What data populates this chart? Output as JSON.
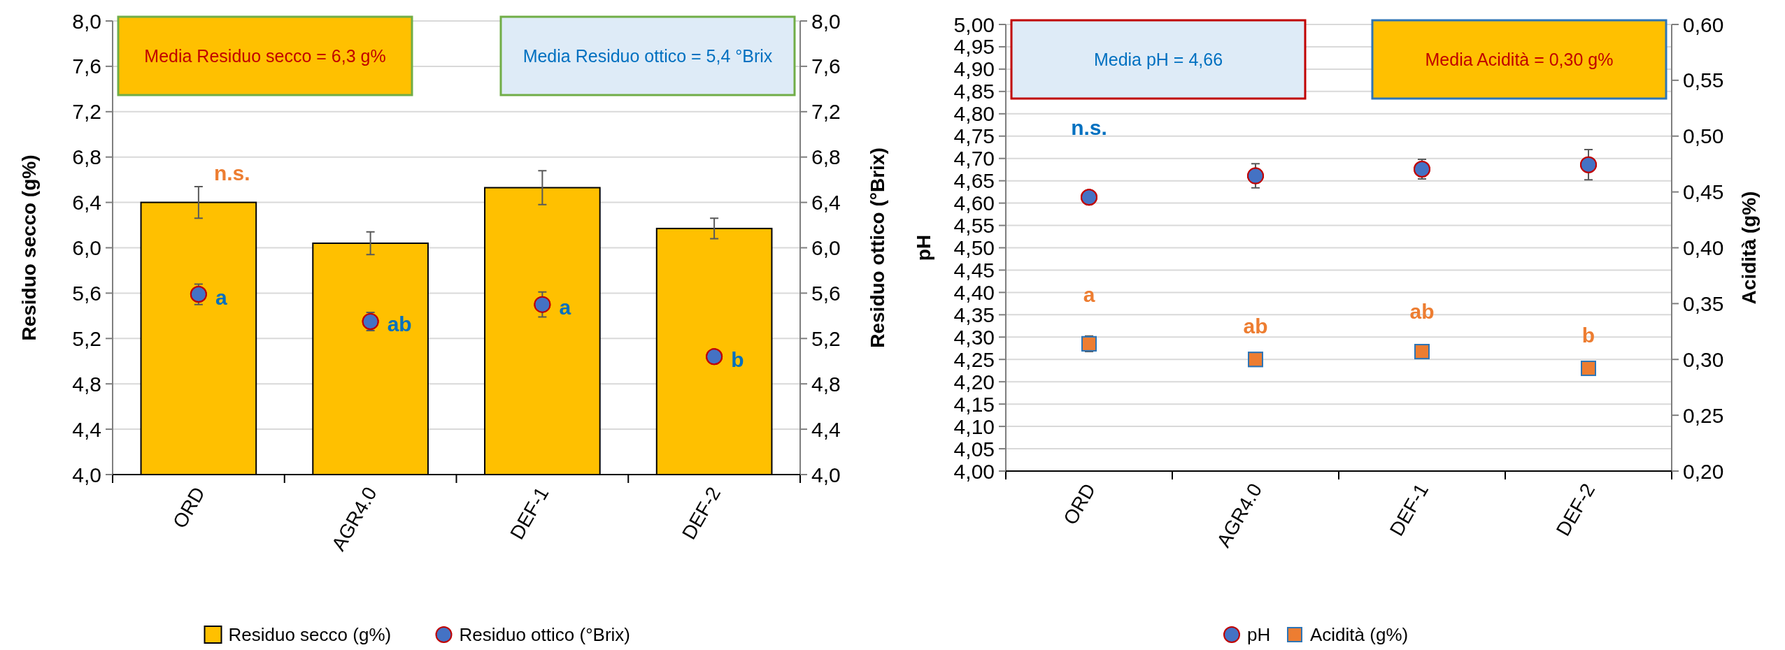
{
  "chart_data": [
    {
      "type": "bar",
      "categories": [
        "ORD",
        "AGR4.0",
        "DEF-1",
        "DEF-2"
      ],
      "ylabel": "Residuo secco (g%)",
      "y2label": "Residuo ottico (°Brix)",
      "ylim": [
        4,
        8
      ],
      "y2lim": [
        4,
        8
      ],
      "yticks": [
        {
          "value": 4,
          "label": "4,0"
        },
        {
          "value": 4.4,
          "label": "4,4"
        },
        {
          "value": 4.8,
          "label": "4,8"
        },
        {
          "value": 5.2,
          "label": "5,2"
        },
        {
          "value": 5.6,
          "label": "5,6"
        },
        {
          "value": 6,
          "label": "6,0"
        },
        {
          "value": 6.4,
          "label": "6,4"
        },
        {
          "value": 6.8,
          "label": "6,8"
        },
        {
          "value": 7.2,
          "label": "7,2"
        },
        {
          "value": 7.6,
          "label": "7,6"
        },
        {
          "value": 8,
          "label": "8,0"
        }
      ],
      "y2ticks": [
        {
          "value": 4,
          "label": "4,0"
        },
        {
          "value": 4.4,
          "label": "4,4"
        },
        {
          "value": 4.8,
          "label": "4,8"
        },
        {
          "value": 5.2,
          "label": "5,2"
        },
        {
          "value": 5.6,
          "label": "5,6"
        },
        {
          "value": 6,
          "label": "6,0"
        },
        {
          "value": 6.4,
          "label": "6,4"
        },
        {
          "value": 6.8,
          "label": "6,8"
        },
        {
          "value": 7.2,
          "label": "7,2"
        },
        {
          "value": 7.6,
          "label": "7,6"
        },
        {
          "value": 8,
          "label": "8,0"
        }
      ],
      "grid": "y",
      "legend": "bottom",
      "series": [
        {
          "name": "Residuo secco (g%)",
          "color": "#ffc000",
          "values": [
            6.4,
            6.04,
            6.53,
            6.17
          ],
          "errors": [
            0.14,
            0.1,
            0.15,
            0.09
          ]
        },
        {
          "name": "Residuo ottico (°Brix)",
          "type": "scatter",
          "axis": "y2",
          "marker": "circle",
          "color": "#4472c4",
          "values": [
            5.59,
            5.35,
            5.5,
            5.04
          ],
          "errors": [
            0.09,
            0.08,
            0.11,
            null
          ]
        }
      ],
      "annotations": [
        "Media Residuo secco = 6,3 g%",
        "Media Residuo ottico = 5,4 °Brix",
        "n.s.",
        "a",
        "ab",
        "a",
        "b"
      ]
    },
    {
      "type": "scatter",
      "categories": [
        "ORD",
        "AGR4.0",
        "DEF-1",
        "DEF-2"
      ],
      "ylabel": "pH",
      "y2label": "Acidità (g%)",
      "ylim": [
        4,
        5
      ],
      "y2lim": [
        0.2,
        0.6
      ],
      "yticks": [
        {
          "value": 4,
          "label": "4,00"
        },
        {
          "value": 4.05,
          "label": "4,05"
        },
        {
          "value": 4.1,
          "label": "4,10"
        },
        {
          "value": 4.15,
          "label": "4,15"
        },
        {
          "value": 4.2,
          "label": "4,20"
        },
        {
          "value": 4.25,
          "label": "4,25"
        },
        {
          "value": 4.3,
          "label": "4,30"
        },
        {
          "value": 4.35,
          "label": "4,35"
        },
        {
          "value": 4.4,
          "label": "4,40"
        },
        {
          "value": 4.45,
          "label": "4,45"
        },
        {
          "value": 4.5,
          "label": "4,50"
        },
        {
          "value": 4.55,
          "label": "4,55"
        },
        {
          "value": 4.6,
          "label": "4,60"
        },
        {
          "value": 4.65,
          "label": "4,65"
        },
        {
          "value": 4.7,
          "label": "4,70"
        },
        {
          "value": 4.75,
          "label": "4,75"
        },
        {
          "value": 4.8,
          "label": "4,80"
        },
        {
          "value": 4.85,
          "label": "4,85"
        },
        {
          "value": 4.9,
          "label": "4,90"
        },
        {
          "value": 4.95,
          "label": "4,95"
        },
        {
          "value": 5,
          "label": "5,00"
        }
      ],
      "y2ticks": [
        {
          "value": 0.2,
          "label": "0,20"
        },
        {
          "value": 0.25,
          "label": "0,25"
        },
        {
          "value": 0.3,
          "label": "0,30"
        },
        {
          "value": 0.35,
          "label": "0,35"
        },
        {
          "value": 0.4,
          "label": "0,40"
        },
        {
          "value": 0.45,
          "label": "0,45"
        },
        {
          "value": 0.5,
          "label": "0,50"
        },
        {
          "value": 0.55,
          "label": "0,55"
        },
        {
          "value": 0.6,
          "label": "0,60"
        }
      ],
      "grid": "y",
      "legend": "bottom",
      "series": [
        {
          "name": "pH",
          "marker": "circle",
          "color": "#4472c4",
          "values": [
            4.613,
            4.661,
            4.676,
            4.686
          ],
          "errors": [
            0.015,
            0.027,
            0.022,
            0.034
          ]
        },
        {
          "name": "Acidità (g%)",
          "axis": "y2",
          "marker": "square",
          "color": "#ed7d31",
          "values": [
            0.314,
            0.3,
            0.307,
            0.292
          ],
          "errors": [
            0.007,
            null,
            null,
            null
          ]
        }
      ],
      "annotations": [
        "Media pH = 4,66",
        "Media Acidità = 0,30 g%",
        "n.s.",
        "a",
        "ab",
        "ab",
        "b"
      ]
    }
  ]
}
